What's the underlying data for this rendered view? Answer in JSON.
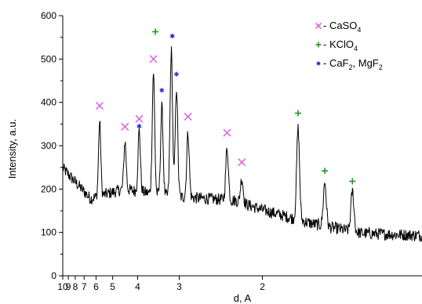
{
  "chart_data": {
    "type": "line",
    "title": "",
    "xlabel": "d, A",
    "ylabel": "Intensity, a.u.",
    "x_scale": "reciprocal",
    "xlim": [
      10.0,
      1.22
    ],
    "ylim": [
      0,
      600
    ],
    "grid": false,
    "legend_position": "top-right",
    "y_ticks": [
      0,
      100,
      200,
      300,
      400,
      500,
      600
    ],
    "x_ticks": [
      {
        "value": 10,
        "label": "10"
      },
      {
        "value": 9,
        "label": "9"
      },
      {
        "value": 8,
        "label": "8"
      },
      {
        "value": 7,
        "label": "7"
      },
      {
        "value": 6,
        "label": "6"
      },
      {
        "value": 5,
        "label": "5"
      },
      {
        "value": 4,
        "label": "4"
      },
      {
        "value": 3,
        "label": "3"
      },
      {
        "value": 2,
        "label": "2"
      }
    ],
    "series": [
      {
        "color": "#000000",
        "description": "XRD pattern",
        "peaks": [
          {
            "d": 5.75,
            "intensity": 355
          },
          {
            "d": 4.45,
            "intensity": 310
          },
          {
            "d": 3.95,
            "intensity": 335
          },
          {
            "d": 3.55,
            "intensity": 470
          },
          {
            "d": 3.35,
            "intensity": 390
          },
          {
            "d": 3.15,
            "intensity": 520
          },
          {
            "d": 3.05,
            "intensity": 435
          },
          {
            "d": 2.85,
            "intensity": 330
          },
          {
            "d": 2.33,
            "intensity": 295
          },
          {
            "d": 2.18,
            "intensity": 225
          },
          {
            "d": 1.75,
            "intensity": 340
          },
          {
            "d": 1.6,
            "intensity": 215
          },
          {
            "d": 1.47,
            "intensity": 195
          }
        ]
      }
    ],
    "markers": [
      {
        "d": 5.75,
        "intensity": 392,
        "phase": "CaSO4"
      },
      {
        "d": 4.45,
        "intensity": 344,
        "phase": "CaSO4"
      },
      {
        "d": 3.95,
        "intensity": 362,
        "phase": "CaSO4"
      },
      {
        "d": 3.55,
        "intensity": 500,
        "phase": "CaSO4"
      },
      {
        "d": 2.85,
        "intensity": 367,
        "phase": "CaSO4"
      },
      {
        "d": 2.33,
        "intensity": 330,
        "phase": "CaSO4"
      },
      {
        "d": 2.18,
        "intensity": 262,
        "phase": "CaSO4"
      },
      {
        "d": 3.5,
        "intensity": 563,
        "phase": "KClO4"
      },
      {
        "d": 1.75,
        "intensity": 375,
        "phase": "KClO4"
      },
      {
        "d": 1.6,
        "intensity": 242,
        "phase": "KClO4"
      },
      {
        "d": 1.47,
        "intensity": 218,
        "phase": "KClO4"
      },
      {
        "d": 3.95,
        "intensity": 345,
        "phase": "CaF2_MgF2"
      },
      {
        "d": 3.35,
        "intensity": 428,
        "phase": "CaF2_MgF2"
      },
      {
        "d": 3.13,
        "intensity": 553,
        "phase": "CaF2_MgF2"
      },
      {
        "d": 3.05,
        "intensity": 465,
        "phase": "CaF2_MgF2"
      }
    ],
    "legend": [
      {
        "key": "CaSO4",
        "symbol": "x",
        "color": "#e066e0",
        "prefix": " - CaSO",
        "sub": "4",
        "suffix": ""
      },
      {
        "key": "KClO4",
        "symbol": "+",
        "color": "#1a9a1a",
        "prefix": " - KClO",
        "sub": "4",
        "suffix": ""
      },
      {
        "key": "CaF2_MgF2",
        "symbol": "*",
        "color": "#1f2bd0",
        "prefix": " - CaF",
        "sub": "2",
        "suffix": ", MgF",
        "sub2": "2"
      }
    ]
  }
}
